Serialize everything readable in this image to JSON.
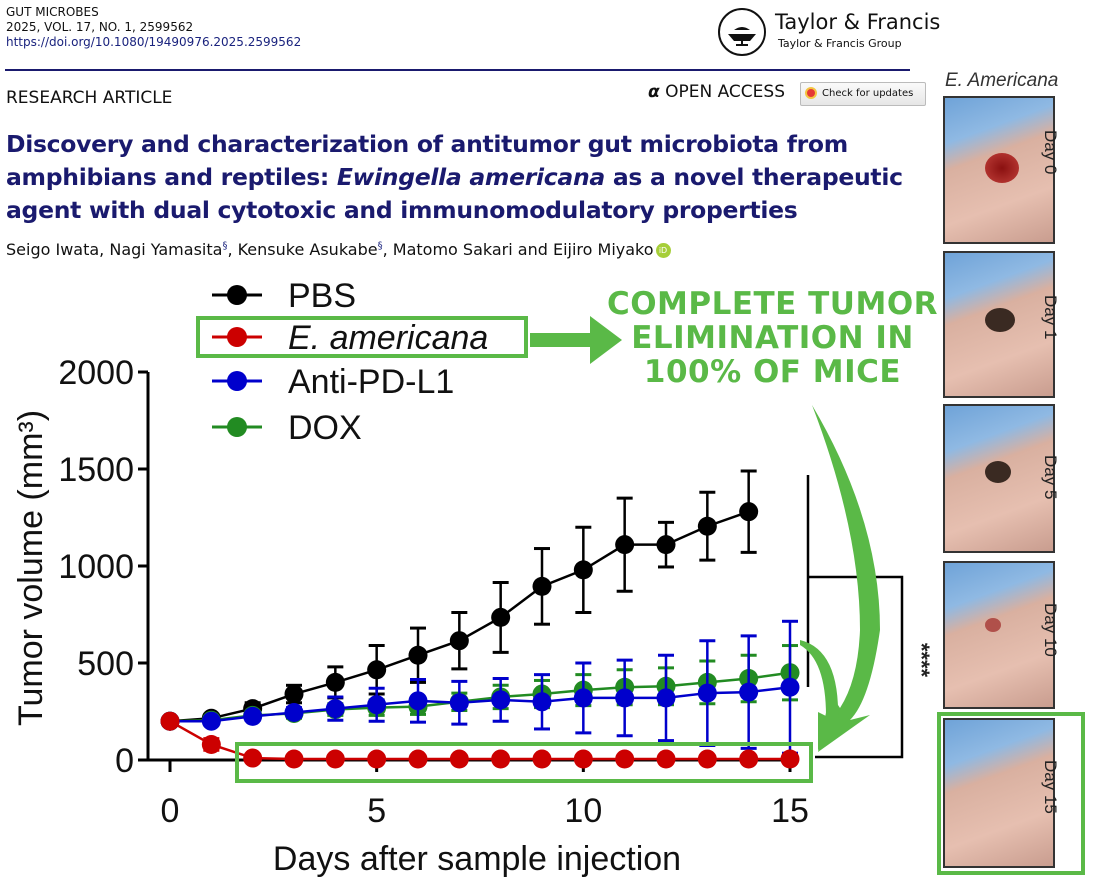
{
  "header": {
    "journal": "GUT MICROBES",
    "volume_line": "2025, VOL. 17, NO. 1, 2599562",
    "doi": "https://doi.org/10.1080/19490976.2025.2599562",
    "publisher_name": "Taylor & Francis",
    "publisher_group": "Taylor & Francis Group",
    "article_type": "RESEARCH ARTICLE",
    "open_access": "OPEN ACCESS",
    "check_updates": "Check for updates"
  },
  "article": {
    "title_part1": "Discovery and characterization of antitumor gut microbiota from amphibians and reptiles: ",
    "title_italic": "Ewingella americana",
    "title_part2": " as a novel therapeutic agent with dual cytotoxic and immunomodulatory properties",
    "authors": [
      {
        "name": "Seigo Iwata",
        "mark": ""
      },
      {
        "name": "Nagi Yamasita",
        "mark": "§"
      },
      {
        "name": "Kensuke Asukabe",
        "mark": "§"
      },
      {
        "name": "Matomo Sakari",
        "mark": ""
      },
      {
        "name": "Eijiro Miyako",
        "mark": ""
      }
    ],
    "author_sep1": ", ",
    "author_and": " and ",
    "orcid_label": "iD"
  },
  "annotation": {
    "lines": [
      "COMPLETE TUMOR",
      "ELIMINATION IN",
      "100% OF MICE"
    ],
    "color": "#5ab947"
  },
  "photos": {
    "title": "E. Americana",
    "days": [
      "Day 0",
      "Day 1",
      "Day 5",
      "Day 10",
      "Day 15"
    ]
  },
  "chart_data": {
    "type": "line",
    "xlabel": "Days after sample injection",
    "ylabel": "Tumor volume (mm³)",
    "xlim": [
      0,
      15
    ],
    "ylim": [
      0,
      2000
    ],
    "xticks": [
      0,
      5,
      10,
      15
    ],
    "yticks": [
      0,
      500,
      1000,
      1500,
      2000
    ],
    "legend_position": "top-left",
    "significance": "****",
    "series": [
      {
        "name": "PBS",
        "color": "#000000",
        "x": [
          0,
          1,
          2,
          3,
          4,
          5,
          6,
          7,
          8,
          9,
          10,
          11,
          12,
          13,
          14
        ],
        "values": [
          200,
          215,
          265,
          340,
          400,
          465,
          540,
          615,
          735,
          895,
          980,
          1110,
          1110,
          1205,
          1280
        ],
        "error": [
          10,
          20,
          30,
          45,
          80,
          125,
          140,
          145,
          180,
          195,
          220,
          240,
          115,
          175,
          210
        ]
      },
      {
        "name": "E. americana",
        "italic": true,
        "color": "#cc0000",
        "x": [
          0,
          1,
          2,
          3,
          4,
          5,
          6,
          7,
          8,
          9,
          10,
          11,
          12,
          13,
          14,
          15
        ],
        "values": [
          200,
          80,
          10,
          5,
          5,
          5,
          5,
          5,
          5,
          5,
          5,
          5,
          5,
          5,
          5,
          5
        ],
        "error": [
          10,
          30,
          5,
          5,
          5,
          5,
          5,
          5,
          5,
          5,
          5,
          5,
          5,
          5,
          5,
          5
        ]
      },
      {
        "name": "Anti-PD-L1",
        "color": "#0000cc",
        "x": [
          0,
          1,
          2,
          3,
          4,
          5,
          6,
          7,
          8,
          9,
          10,
          11,
          12,
          13,
          14,
          15
        ],
        "values": [
          200,
          200,
          225,
          245,
          265,
          285,
          305,
          295,
          310,
          300,
          320,
          320,
          320,
          345,
          350,
          375
        ],
        "error": [
          10,
          15,
          20,
          25,
          60,
          85,
          110,
          110,
          110,
          140,
          180,
          195,
          220,
          270,
          290,
          340
        ]
      },
      {
        "name": "DOX",
        "color": "#228b22",
        "x": [
          0,
          1,
          2,
          3,
          4,
          5,
          6,
          7,
          8,
          9,
          10,
          11,
          12,
          13,
          14,
          15
        ],
        "values": [
          200,
          205,
          230,
          240,
          260,
          270,
          275,
          300,
          325,
          340,
          360,
          375,
          380,
          400,
          420,
          450
        ],
        "error": [
          10,
          15,
          20,
          25,
          30,
          40,
          40,
          45,
          60,
          70,
          80,
          90,
          95,
          110,
          120,
          140
        ]
      }
    ]
  }
}
